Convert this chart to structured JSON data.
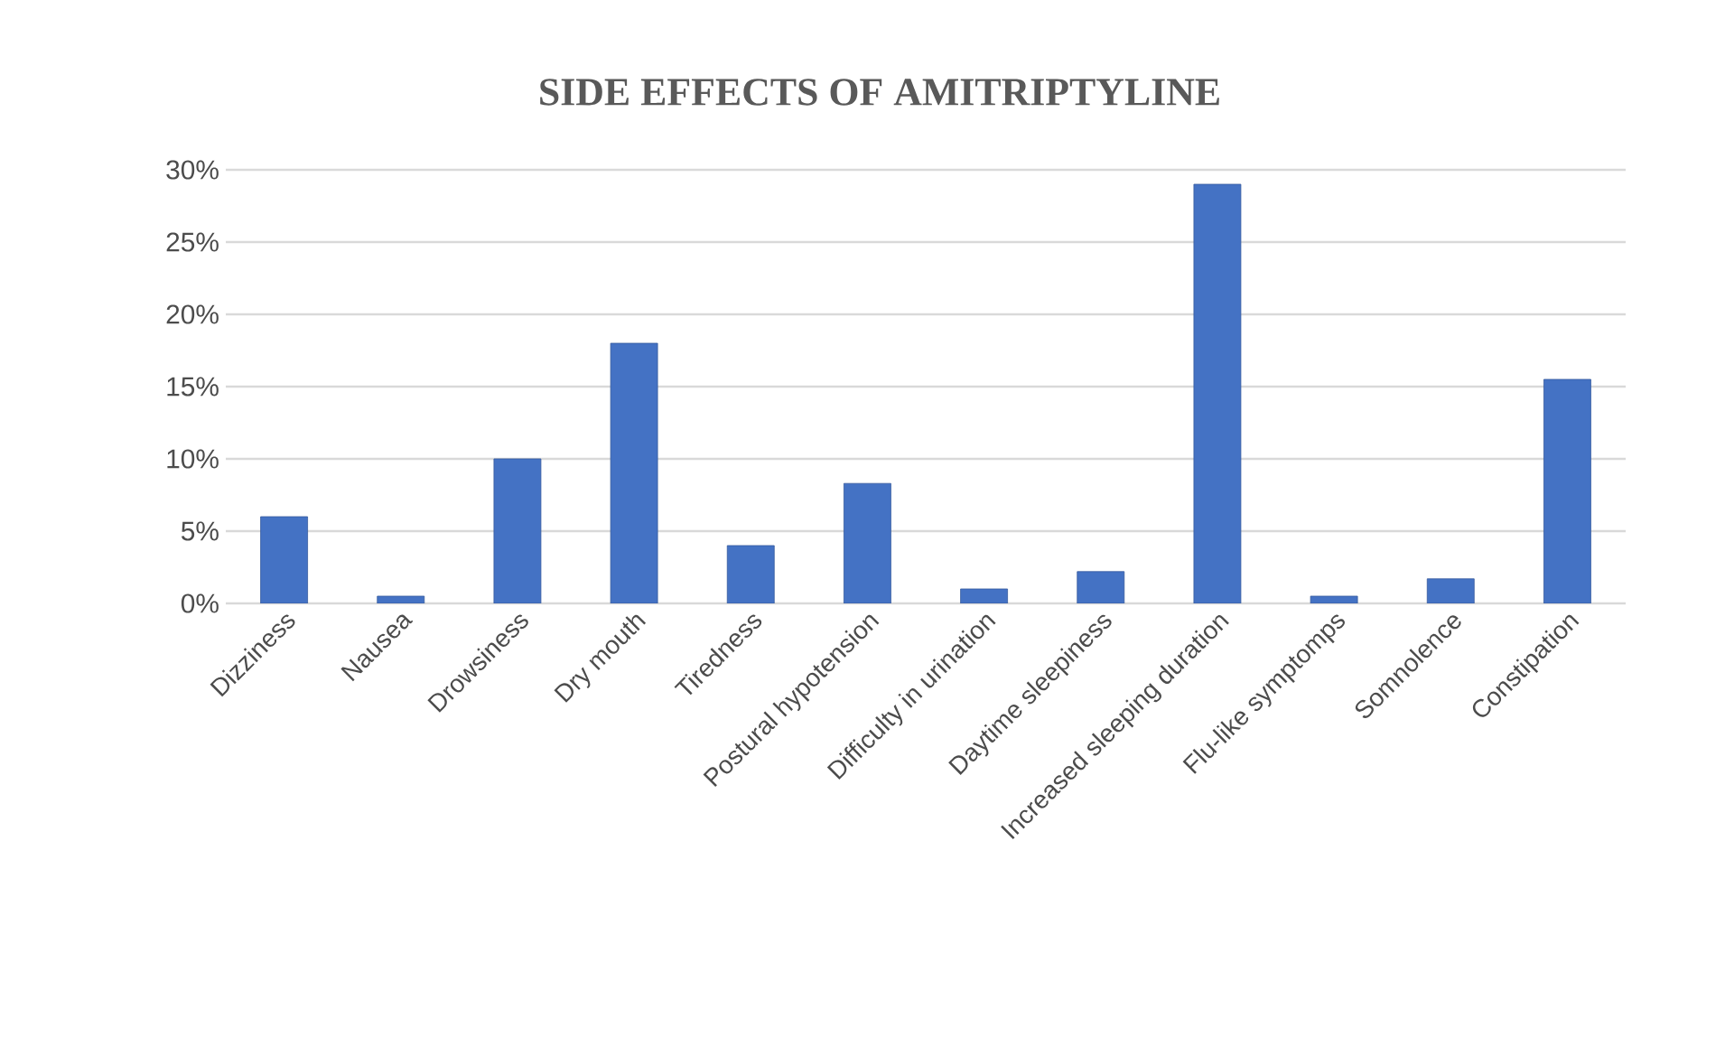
{
  "chart_data": {
    "type": "bar",
    "title": "SIDE EFFECTS OF AMITRIPTYLINE",
    "categories": [
      "Dizziness",
      "Nausea",
      "Drowsiness",
      "Dry mouth",
      "Tiredness",
      "Postural hypotension",
      "Difficulty in urination",
      "Daytime sleepiness",
      "Increased sleeping duration",
      "Flu-like symptomps",
      "Somnolence",
      "Constipation"
    ],
    "values": [
      6,
      0.5,
      10,
      18,
      4,
      8.3,
      1,
      2.2,
      29,
      0.5,
      1.7,
      15.5
    ],
    "color": "#4472c4",
    "ylim": [
      0,
      30
    ],
    "yticks": [
      {
        "value": 0,
        "label": "0%"
      },
      {
        "value": 5,
        "label": "5%"
      },
      {
        "value": 10,
        "label": "10%"
      },
      {
        "value": 15,
        "label": "15%"
      },
      {
        "value": 20,
        "label": "20%"
      },
      {
        "value": 25,
        "label": "25%"
      },
      {
        "value": 30,
        "label": "30%"
      }
    ],
    "grid": "y"
  }
}
